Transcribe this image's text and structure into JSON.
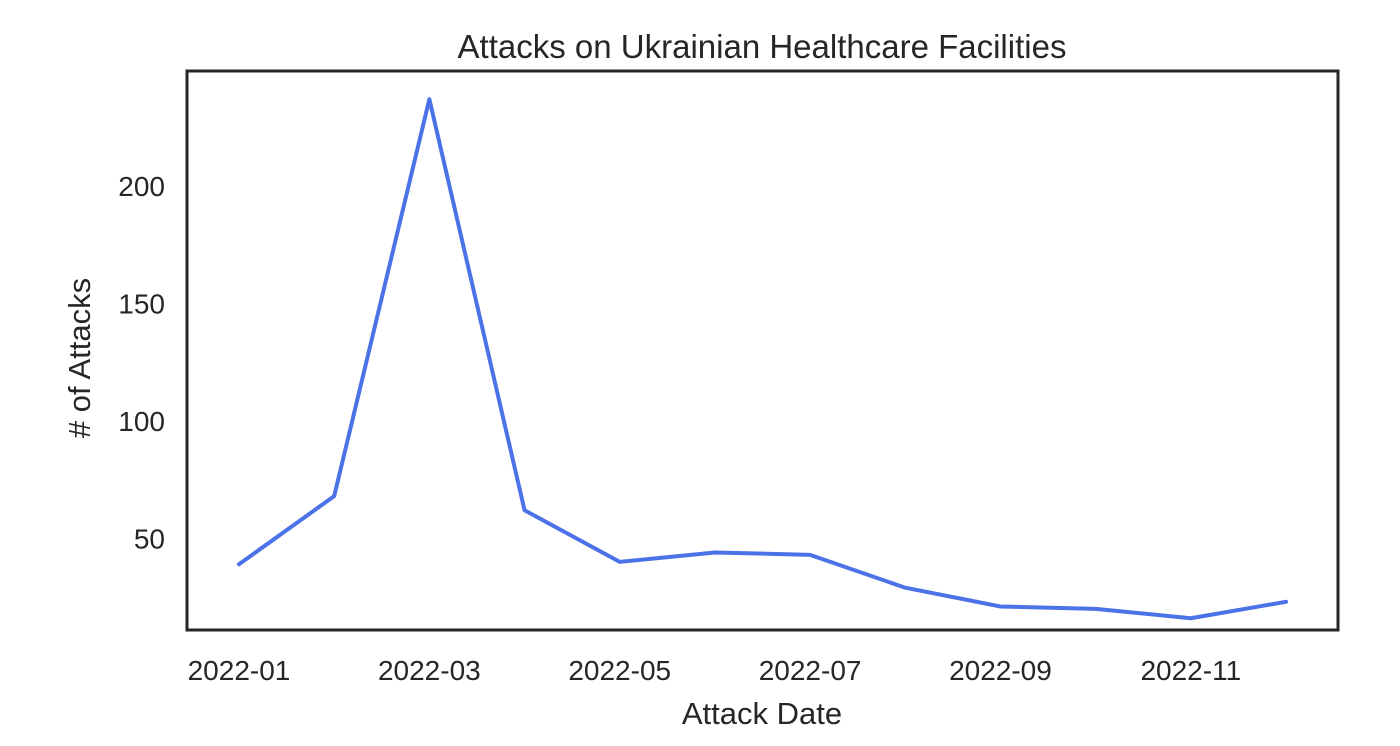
{
  "chart_data": {
    "type": "line",
    "title": "Attacks on Ukrainian Healthcare Facilities",
    "xlabel": "Attack Date",
    "ylabel": "# of Attacks",
    "x": [
      "2022-01",
      "2022-02",
      "2022-03",
      "2022-04",
      "2022-05",
      "2022-06",
      "2022-07",
      "2022-08",
      "2022-09",
      "2022-10",
      "2022-11",
      "2022-12"
    ],
    "series": [
      {
        "color": "#4c72e8",
        "values": [
          39,
          68,
          237,
          62,
          40,
          44,
          43,
          29,
          21,
          20,
          16,
          23
        ]
      }
    ],
    "x_ticks": [
      "2022-01",
      "2022-03",
      "2022-05",
      "2022-07",
      "2022-09",
      "2022-11"
    ],
    "y_ticks": [
      50,
      100,
      150,
      200
    ],
    "ylim": [
      11,
      249
    ],
    "grid": false,
    "legend": "none"
  }
}
